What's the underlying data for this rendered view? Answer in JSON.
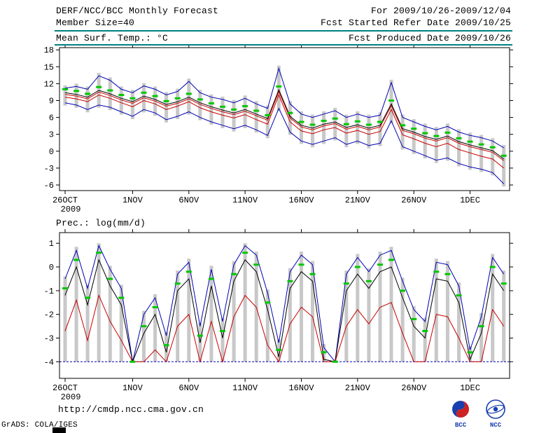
{
  "header": {
    "line1_left": "DERF/NCC/BCC Monthly Forecast",
    "line2_left": "Member Size=40",
    "line3_left": "Mean Surf. Temp.: °C",
    "line1_right": "For 2009/10/26-2009/12/04",
    "line2_right": "Fcst Started Refer Date 2009/10/25",
    "line3_right": "Fcst Produced Date 2009/10/26"
  },
  "footer": {
    "url": "http://cmdp.ncc.cma.gov.cn",
    "grads_credit": "GrADS: COLA/IGES",
    "logo_bcc_label": "BCC",
    "logo_ncc_label": "NCC"
  },
  "colors": {
    "blue": "#0000b4",
    "red": "#c80000",
    "black": "#000000",
    "green": "#00c800",
    "bar_gray": "#c8c8c8",
    "teal_rule": "#008080",
    "logo_blue": "#1a3fae",
    "logo_red": "#cc2222"
  },
  "chart_data": [
    {
      "type": "line",
      "title": "Mean Surf. Temp.: °C",
      "xlabel": "",
      "ylabel": "°C",
      "ylim": [
        -7,
        18.4
      ],
      "yticks": [
        18,
        15,
        12,
        9,
        6,
        3,
        0,
        -3,
        -6
      ],
      "n_points": 40,
      "x_tick_labels": [
        "26OCT",
        "1NOV",
        "6NOV",
        "11NOV",
        "16NOV",
        "21NOV",
        "26NOV",
        "1DEC"
      ],
      "x_tick_indices": [
        0,
        6,
        11,
        16,
        21,
        26,
        31,
        36
      ],
      "year_label": "2009",
      "series": [
        {
          "name": "ensemble-max",
          "color": "blue",
          "style": "line",
          "values": [
            11.2,
            11.5,
            11.0,
            13.4,
            12.6,
            11.0,
            10.4,
            11.6,
            11.0,
            10.0,
            10.6,
            12.4,
            10.4,
            9.6,
            9.2,
            8.6,
            9.4,
            8.4,
            7.6,
            14.7,
            8.4,
            6.6,
            6.0,
            6.6,
            7.2,
            6.0,
            6.6,
            6.0,
            6.4,
            12.2,
            6.0,
            5.2,
            4.4,
            3.8,
            4.4,
            3.4,
            2.8,
            2.4,
            1.8,
            0.6
          ]
        },
        {
          "name": "ensemble-min",
          "color": "blue",
          "style": "line",
          "values": [
            8.6,
            8.2,
            7.4,
            8.2,
            7.8,
            7.0,
            6.2,
            7.4,
            6.8,
            5.6,
            6.2,
            7.0,
            6.0,
            5.2,
            4.6,
            4.0,
            4.6,
            3.8,
            2.8,
            7.6,
            3.4,
            1.8,
            1.2,
            1.8,
            2.4,
            1.2,
            1.8,
            1.0,
            1.4,
            5.4,
            0.8,
            0.0,
            -0.8,
            -1.6,
            -1.2,
            -2.2,
            -2.8,
            -3.2,
            -3.8,
            -5.8
          ]
        },
        {
          "name": "control-run",
          "color": "black",
          "style": "line",
          "values": [
            10.4,
            10.1,
            9.6,
            10.8,
            10.2,
            9.4,
            8.8,
            9.8,
            9.2,
            8.3,
            8.8,
            9.6,
            8.6,
            7.9,
            7.3,
            6.8,
            7.4,
            6.6,
            5.8,
            10.9,
            6.2,
            4.6,
            4.1,
            4.8,
            5.2,
            4.2,
            4.7,
            4.1,
            4.6,
            8.4,
            4.0,
            3.4,
            2.6,
            2.1,
            2.7,
            1.7,
            1.1,
            0.6,
            0.1,
            -1.4
          ]
        },
        {
          "name": "ensemble-mean-upper",
          "color": "red",
          "style": "line",
          "values": [
            10.1,
            9.8,
            9.3,
            10.5,
            9.9,
            9.1,
            8.5,
            9.5,
            8.9,
            8.0,
            8.5,
            9.3,
            8.3,
            7.6,
            7.0,
            6.5,
            7.1,
            6.3,
            5.5,
            10.6,
            5.9,
            4.3,
            3.8,
            4.5,
            4.9,
            3.9,
            4.4,
            3.8,
            4.3,
            8.1,
            3.7,
            3.1,
            2.3,
            1.8,
            2.4,
            1.4,
            0.8,
            0.3,
            -0.2,
            -1.7
          ]
        },
        {
          "name": "ensemble-mean-lower",
          "color": "red",
          "style": "line",
          "values": [
            9.6,
            9.3,
            8.8,
            10.0,
            9.4,
            8.6,
            7.9,
            9.0,
            8.4,
            7.4,
            8.0,
            8.8,
            7.7,
            7.0,
            6.4,
            5.9,
            6.5,
            5.6,
            4.8,
            10.0,
            5.2,
            3.6,
            3.1,
            3.8,
            4.2,
            3.2,
            3.7,
            3.0,
            3.5,
            7.4,
            2.9,
            2.2,
            1.4,
            0.8,
            1.4,
            0.3,
            -0.3,
            -0.9,
            -1.4,
            -3.0
          ]
        },
        {
          "name": "median-marks",
          "color": "green",
          "style": "dash-marks",
          "values": [
            11.0,
            10.7,
            10.2,
            11.4,
            10.8,
            10.0,
            9.4,
            10.4,
            9.8,
            8.9,
            9.4,
            10.2,
            9.2,
            8.5,
            7.9,
            7.4,
            8.0,
            7.2,
            6.4,
            11.5,
            6.8,
            5.2,
            4.7,
            5.4,
            5.8,
            4.8,
            5.3,
            4.7,
            5.2,
            9.0,
            4.6,
            4.0,
            3.2,
            2.7,
            3.3,
            2.3,
            1.7,
            1.2,
            0.7,
            -0.8
          ]
        }
      ],
      "bars": {
        "high": [
          11.7,
          12.0,
          11.5,
          13.9,
          13.1,
          11.5,
          10.9,
          12.1,
          11.5,
          10.5,
          11.1,
          12.9,
          10.9,
          10.1,
          9.7,
          9.1,
          9.9,
          8.9,
          8.1,
          15.2,
          8.9,
          7.1,
          6.5,
          7.1,
          7.7,
          6.5,
          7.1,
          6.5,
          6.9,
          12.7,
          6.5,
          5.7,
          4.9,
          4.3,
          4.9,
          3.9,
          3.3,
          2.9,
          2.3,
          1.1
        ],
        "low": [
          8.1,
          7.7,
          6.9,
          7.7,
          7.3,
          6.5,
          5.7,
          6.9,
          6.3,
          5.1,
          5.7,
          6.5,
          5.5,
          4.7,
          4.1,
          3.5,
          4.1,
          3.3,
          2.3,
          7.1,
          2.9,
          1.3,
          0.7,
          1.3,
          1.9,
          0.7,
          1.3,
          0.5,
          0.9,
          4.9,
          0.3,
          -0.5,
          -1.3,
          -2.1,
          -1.7,
          -2.7,
          -3.3,
          -3.7,
          -4.3,
          -6.3
        ]
      }
    },
    {
      "type": "line",
      "title": "Prec.: log(mm/d)",
      "xlabel": "",
      "ylabel": "log(mm/d)",
      "ylim": [
        -4.7,
        1.45
      ],
      "yticks": [
        1,
        0,
        -1,
        -2,
        -3,
        -4
      ],
      "n_points": 40,
      "x_tick_labels": [
        "26OCT",
        "1NOV",
        "6NOV",
        "11NOV",
        "16NOV",
        "21NOV",
        "26NOV",
        "1DEC"
      ],
      "x_tick_indices": [
        0,
        6,
        11,
        16,
        21,
        26,
        31,
        36
      ],
      "year_label": "2009",
      "floor_value": -4.0,
      "series": [
        {
          "name": "ensemble-max",
          "color": "blue",
          "style": "line",
          "values": [
            -0.5,
            0.7,
            -0.9,
            0.9,
            -0.1,
            -0.9,
            -4.0,
            -2.0,
            -1.3,
            -2.9,
            -0.3,
            0.2,
            -2.5,
            -0.1,
            -2.3,
            0.1,
            0.9,
            0.5,
            -1.1,
            -3.2,
            -0.2,
            0.5,
            0.1,
            -3.4,
            -4.0,
            -0.3,
            0.4,
            -0.2,
            0.5,
            0.7,
            -0.6,
            -1.8,
            -2.3,
            0.2,
            0.1,
            -0.8,
            -3.5,
            -2.1,
            0.4,
            -0.3
          ]
        },
        {
          "name": "control-run",
          "color": "black",
          "style": "line",
          "values": [
            -1.2,
            0.0,
            -1.6,
            0.3,
            -0.8,
            -1.6,
            -4.0,
            -2.8,
            -2.0,
            -3.6,
            -1.0,
            -0.5,
            -3.2,
            -0.8,
            -3.0,
            -0.6,
            0.3,
            -0.2,
            -1.8,
            -3.8,
            -0.9,
            -0.2,
            -0.6,
            -3.9,
            -4.0,
            -1.0,
            -0.3,
            -0.9,
            -0.2,
            0.0,
            -1.3,
            -2.5,
            -3.0,
            -0.5,
            -0.6,
            -1.5,
            -3.9,
            -2.8,
            -0.3,
            -1.0
          ]
        },
        {
          "name": "ensemble-min",
          "color": "red",
          "style": "line",
          "values": [
            -2.7,
            -1.4,
            -3.1,
            -1.2,
            -2.3,
            -3.1,
            -4.0,
            -4.0,
            -3.5,
            -4.0,
            -2.5,
            -2.0,
            -4.0,
            -2.3,
            -4.0,
            -2.1,
            -1.2,
            -1.7,
            -3.3,
            -4.0,
            -2.4,
            -1.7,
            -2.1,
            -4.0,
            -4.0,
            -2.5,
            -1.8,
            -2.4,
            -1.7,
            -1.5,
            -2.8,
            -4.0,
            -4.0,
            -2.0,
            -2.1,
            -3.0,
            -4.0,
            -4.0,
            -1.8,
            -2.5
          ]
        },
        {
          "name": "median-marks",
          "color": "green",
          "style": "dash-marks",
          "values": [
            -0.9,
            0.3,
            -1.3,
            0.6,
            -0.5,
            -1.3,
            -4.0,
            -2.5,
            -1.7,
            -3.3,
            -0.7,
            -0.2,
            -2.9,
            -0.5,
            -2.7,
            -0.3,
            0.6,
            0.1,
            -1.5,
            -3.5,
            -0.6,
            0.1,
            -0.3,
            -3.6,
            -4.0,
            -0.7,
            0.0,
            -0.6,
            0.1,
            0.3,
            -1.0,
            -2.2,
            -2.7,
            -0.2,
            -0.3,
            -1.2,
            -3.6,
            -2.5,
            0.0,
            -0.7
          ]
        }
      ],
      "bars": {
        "high": [
          -0.4,
          0.85,
          -0.75,
          1.0,
          0.05,
          -0.75,
          -3.9,
          -1.85,
          -1.15,
          -2.75,
          -0.15,
          0.35,
          -2.35,
          0.05,
          -2.15,
          0.25,
          1.0,
          0.65,
          -0.95,
          -3.05,
          -0.05,
          0.65,
          0.25,
          -3.25,
          -3.9,
          -0.15,
          0.55,
          -0.05,
          0.65,
          0.85,
          -0.45,
          -1.65,
          -2.15,
          0.35,
          0.25,
          -0.65,
          -3.35,
          -1.95,
          0.55,
          -0.15
        ],
        "low": -4.0
      }
    }
  ]
}
